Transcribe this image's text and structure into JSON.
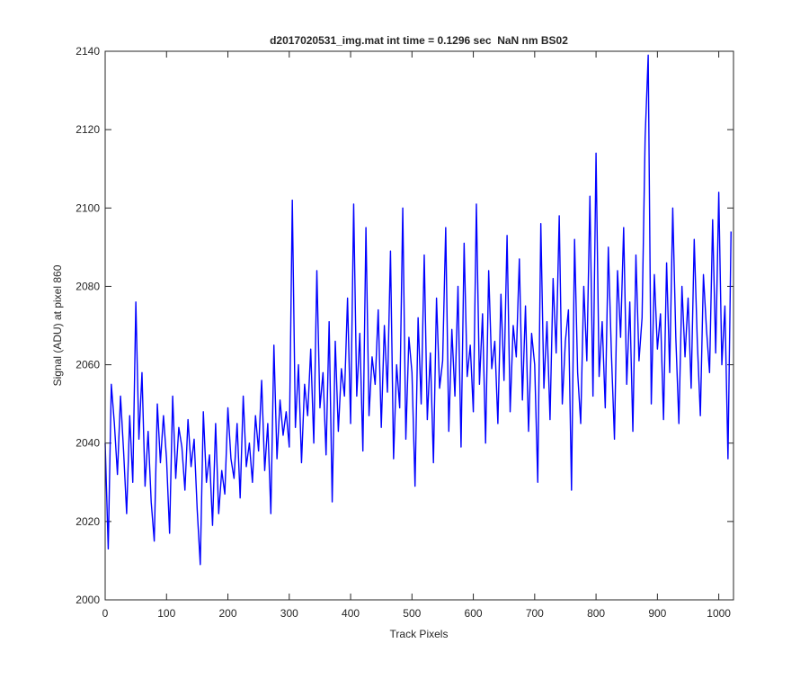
{
  "chart_data": {
    "type": "line",
    "title": "d2017020531_img.mat int time = 0.1296 sec  NaN nm BS02",
    "x_label": "Track Pixels",
    "y_label": "Signal (ADU) at pixel 860",
    "xlim": [
      0,
      1024
    ],
    "ylim": [
      2000,
      2140
    ],
    "xticks": [
      0,
      100,
      200,
      300,
      400,
      500,
      600,
      700,
      800,
      900,
      1000
    ],
    "yticks": [
      2000,
      2020,
      2040,
      2060,
      2080,
      2100,
      2120,
      2140
    ],
    "grid": false,
    "x": [
      0,
      5,
      10,
      15,
      20,
      25,
      30,
      35,
      40,
      45,
      50,
      55,
      60,
      65,
      70,
      75,
      80,
      85,
      90,
      95,
      100,
      105,
      110,
      115,
      120,
      125,
      130,
      135,
      140,
      145,
      150,
      155,
      160,
      165,
      170,
      175,
      180,
      185,
      190,
      195,
      200,
      205,
      210,
      215,
      220,
      225,
      230,
      235,
      240,
      245,
      250,
      255,
      260,
      265,
      270,
      275,
      280,
      285,
      290,
      295,
      300,
      305,
      310,
      315,
      320,
      325,
      330,
      335,
      340,
      345,
      350,
      355,
      360,
      365,
      370,
      375,
      380,
      385,
      390,
      395,
      400,
      405,
      410,
      415,
      420,
      425,
      430,
      435,
      440,
      445,
      450,
      455,
      460,
      465,
      470,
      475,
      480,
      485,
      490,
      495,
      500,
      505,
      510,
      515,
      520,
      525,
      530,
      535,
      540,
      545,
      550,
      555,
      560,
      565,
      570,
      575,
      580,
      585,
      590,
      595,
      600,
      605,
      610,
      615,
      620,
      625,
      630,
      635,
      640,
      645,
      650,
      655,
      660,
      665,
      670,
      675,
      680,
      685,
      690,
      695,
      700,
      705,
      710,
      715,
      720,
      725,
      730,
      735,
      740,
      745,
      750,
      755,
      760,
      765,
      770,
      775,
      780,
      785,
      790,
      795,
      800,
      805,
      810,
      815,
      820,
      825,
      830,
      835,
      840,
      845,
      850,
      855,
      860,
      865,
      870,
      875,
      880,
      885,
      890,
      895,
      900,
      905,
      910,
      915,
      920,
      925,
      930,
      935,
      940,
      945,
      950,
      955,
      960,
      965,
      970,
      975,
      980,
      985,
      990,
      995,
      1000,
      1005,
      1010,
      1015,
      1020
    ],
    "series": [
      {
        "color": "#0000ff",
        "values": [
          2040,
          2013,
          2055,
          2045,
          2032,
          2052,
          2038,
          2022,
          2047,
          2030,
          2076,
          2041,
          2058,
          2029,
          2043,
          2025,
          2015,
          2050,
          2035,
          2047,
          2036,
          2017,
          2052,
          2031,
          2044,
          2039,
          2028,
          2046,
          2034,
          2041,
          2023,
          2009,
          2048,
          2030,
          2037,
          2019,
          2045,
          2022,
          2033,
          2027,
          2049,
          2036,
          2031,
          2045,
          2026,
          2052,
          2034,
          2040,
          2030,
          2047,
          2038,
          2056,
          2033,
          2045,
          2022,
          2065,
          2036,
          2051,
          2042,
          2048,
          2039,
          2102,
          2044,
          2060,
          2035,
          2055,
          2047,
          2064,
          2040,
          2084,
          2049,
          2058,
          2037,
          2071,
          2025,
          2066,
          2043,
          2059,
          2052,
          2077,
          2045,
          2101,
          2052,
          2068,
          2038,
          2095,
          2047,
          2062,
          2055,
          2074,
          2044,
          2070,
          2053,
          2089,
          2036,
          2060,
          2049,
          2100,
          2041,
          2067,
          2058,
          2029,
          2072,
          2050,
          2088,
          2046,
          2063,
          2035,
          2077,
          2054,
          2061,
          2095,
          2043,
          2069,
          2052,
          2080,
          2039,
          2091,
          2057,
          2065,
          2048,
          2101,
          2055,
          2073,
          2040,
          2084,
          2059,
          2066,
          2045,
          2078,
          2056,
          2093,
          2048,
          2070,
          2062,
          2087,
          2051,
          2075,
          2043,
          2068,
          2060,
          2030,
          2096,
          2054,
          2071,
          2046,
          2082,
          2063,
          2098,
          2050,
          2066,
          2074,
          2028,
          2092,
          2058,
          2045,
          2080,
          2061,
          2103,
          2052,
          2114,
          2057,
          2071,
          2049,
          2090,
          2063,
          2041,
          2084,
          2067,
          2095,
          2055,
          2076,
          2043,
          2088,
          2061,
          2072,
          2118,
          2139,
          2050,
          2083,
          2064,
          2073,
          2046,
          2086,
          2058,
          2100,
          2067,
          2045,
          2080,
          2062,
          2077,
          2054,
          2092,
          2066,
          2047,
          2083,
          2069,
          2058,
          2097,
          2063,
          2104,
          2060,
          2075,
          2036,
          2094
        ]
      }
    ]
  }
}
